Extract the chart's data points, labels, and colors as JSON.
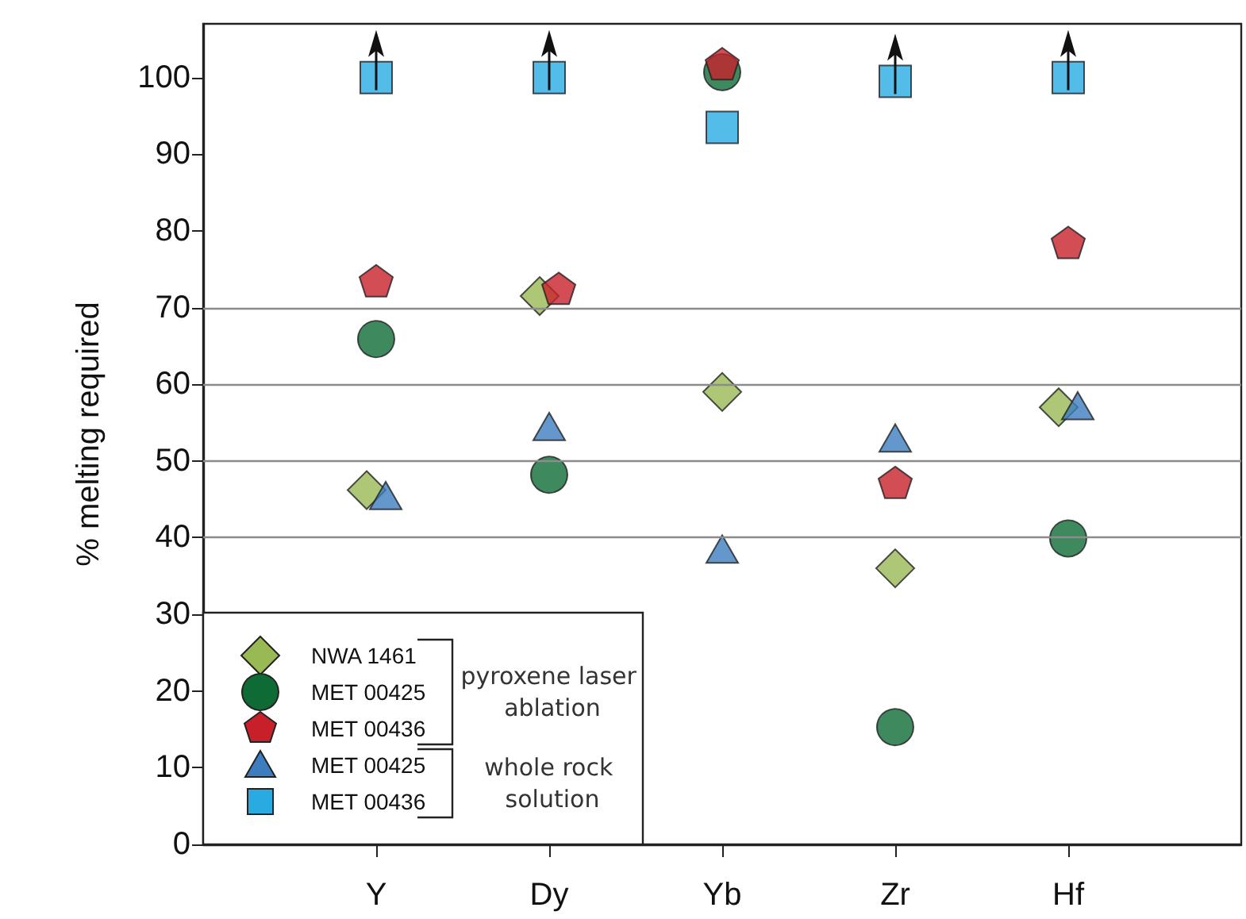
{
  "chart_data": {
    "type": "scatter",
    "ylabel": "% melting required",
    "categories": [
      "Y",
      "Dy",
      "Yb",
      "Zr",
      "Hf"
    ],
    "series": [
      {
        "name": "NWA 1461",
        "color": "#98b954",
        "marker": "diamond",
        "values": [
          46.2,
          71.5,
          59,
          36,
          57
        ]
      },
      {
        "name": "MET 00425",
        "color": "#0e6b36",
        "marker": "circle",
        "values": [
          65.9,
          48.2,
          100.7,
          15.3,
          39.9
        ]
      },
      {
        "name": "MET 00436",
        "color": "#c8202a",
        "values": [
          73.5,
          72.5,
          101.8,
          47.2,
          78.5
        ]
      },
      {
        "name": "MET 00425",
        "color": "#3d7dbf",
        "marker": "triangle",
        "values": [
          45.5,
          54.5,
          38.5,
          53,
          57.2
        ]
      },
      {
        "name": "MET 00436",
        "color": "#29abe2",
        "marker": "square",
        "values": [
          100,
          100,
          93.5,
          99.5,
          100
        ]
      }
    ],
    "ylim": [
      0,
      107
    ],
    "yticks": [
      0,
      10,
      20,
      30,
      40,
      50,
      60,
      70,
      80,
      90,
      100
    ],
    "ref_lines": [
      {
        "axis": "y",
        "value": 40,
        "color": "#8c8c8c"
      },
      {
        "axis": "y",
        "value": 50,
        "color": "#8c8c8c"
      },
      {
        "axis": "y",
        "value": 60,
        "color": "#8c8c8c"
      },
      {
        "axis": "y",
        "value": 70,
        "color": "#8c8c8c"
      }
    ],
    "annotations": [
      "pyroxene laser ablation",
      "whole rock solution"
    ],
    "legend": "bottom left"
  }
}
